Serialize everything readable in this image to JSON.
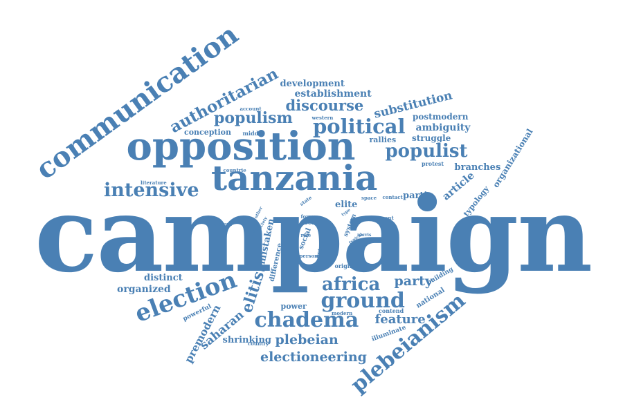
{
  "color": "#4a80b4",
  "words": [
    {
      "text": "campaign",
      "weight": 1.0
    },
    {
      "text": "opposition",
      "weight": 0.55
    },
    {
      "text": "tanzania",
      "weight": 0.5
    },
    {
      "text": "communication",
      "weight": 0.42
    },
    {
      "text": "election",
      "weight": 0.35
    },
    {
      "text": "political",
      "weight": 0.3
    },
    {
      "text": "ground",
      "weight": 0.3
    },
    {
      "text": "chadema",
      "weight": 0.3
    },
    {
      "text": "plebeianism",
      "weight": 0.3
    },
    {
      "text": "intensive",
      "weight": 0.28
    },
    {
      "text": "populist",
      "weight": 0.27
    },
    {
      "text": "africa",
      "weight": 0.27
    },
    {
      "text": "authoritarian",
      "weight": 0.25
    },
    {
      "text": "populism",
      "weight": 0.24
    },
    {
      "text": "discourse",
      "weight": 0.22
    },
    {
      "text": "elitist",
      "weight": 0.22
    },
    {
      "text": "plebeian",
      "weight": 0.2
    },
    {
      "text": "electioneering",
      "weight": 0.2
    },
    {
      "text": "party",
      "weight": 0.2
    },
    {
      "text": "feature",
      "weight": 0.18
    },
    {
      "text": "substitution",
      "weight": 0.17
    },
    {
      "text": "saharan",
      "weight": 0.17
    },
    {
      "text": "premodern",
      "weight": 0.15
    },
    {
      "text": "article",
      "weight": 0.15
    },
    {
      "text": "establishment",
      "weight": 0.14
    },
    {
      "text": "organized",
      "weight": 0.14
    },
    {
      "text": "ambiguity",
      "weight": 0.14
    },
    {
      "text": "development",
      "weight": 0.13
    },
    {
      "text": "shrinking",
      "weight": 0.13
    },
    {
      "text": "distinct",
      "weight": 0.13
    },
    {
      "text": "branches",
      "weight": 0.13
    },
    {
      "text": "elite",
      "weight": 0.13
    },
    {
      "text": "partie",
      "weight": 0.13
    },
    {
      "text": "mistaken",
      "weight": 0.13
    },
    {
      "text": "organizational",
      "weight": 0.12
    },
    {
      "text": "struggle",
      "weight": 0.12
    },
    {
      "text": "postmodern",
      "weight": 0.12
    },
    {
      "text": "conception",
      "weight": 0.11
    },
    {
      "text": "power",
      "weight": 0.11
    },
    {
      "text": "rallies",
      "weight": 0.11
    },
    {
      "text": "typology",
      "weight": 0.11
    },
    {
      "text": "difference",
      "weight": 0.1
    },
    {
      "text": "national",
      "weight": 0.1
    },
    {
      "text": "social",
      "weight": 0.1
    },
    {
      "text": "system",
      "weight": 0.09
    },
    {
      "text": "powerful",
      "weight": 0.09
    },
    {
      "text": "building",
      "weight": 0.09
    },
    {
      "text": "illuminate",
      "weight": 0.09
    },
    {
      "text": "protest",
      "weight": 0.08
    },
    {
      "text": "middle",
      "weight": 0.08
    },
    {
      "text": "contend",
      "weight": 0.08
    },
    {
      "text": "origin",
      "weight": 0.08
    },
    {
      "text": "actor",
      "weight": 0.08
    },
    {
      "text": "local",
      "weight": 0.08
    },
    {
      "text": "country",
      "weight": 0.07
    },
    {
      "text": "modern",
      "weight": 0.07
    },
    {
      "text": "literature",
      "weight": 0.07
    },
    {
      "text": "countrie",
      "weight": 0.07
    },
    {
      "text": "western",
      "weight": 0.07
    },
    {
      "text": "account",
      "weight": 0.07
    },
    {
      "text": "absent",
      "weight": 0.07
    },
    {
      "text": "form",
      "weight": 0.07
    },
    {
      "text": "rise",
      "weight": 0.07
    },
    {
      "text": "person",
      "weight": 0.07
    },
    {
      "text": "space",
      "weight": 0.07
    },
    {
      "text": "contact",
      "weight": 0.07
    },
    {
      "text": "recent",
      "weight": 0.07
    },
    {
      "text": "state",
      "weight": 0.07
    },
    {
      "text": "typical",
      "weight": 0.06
    },
    {
      "text": "norris",
      "weight": 0.06
    },
    {
      "text": "politic",
      "weight": 0.06
    },
    {
      "text": "society",
      "weight": 0.06
    },
    {
      "text": "other",
      "weight": 0.06
    },
    {
      "text": "type",
      "weight": 0.06
    }
  ]
}
